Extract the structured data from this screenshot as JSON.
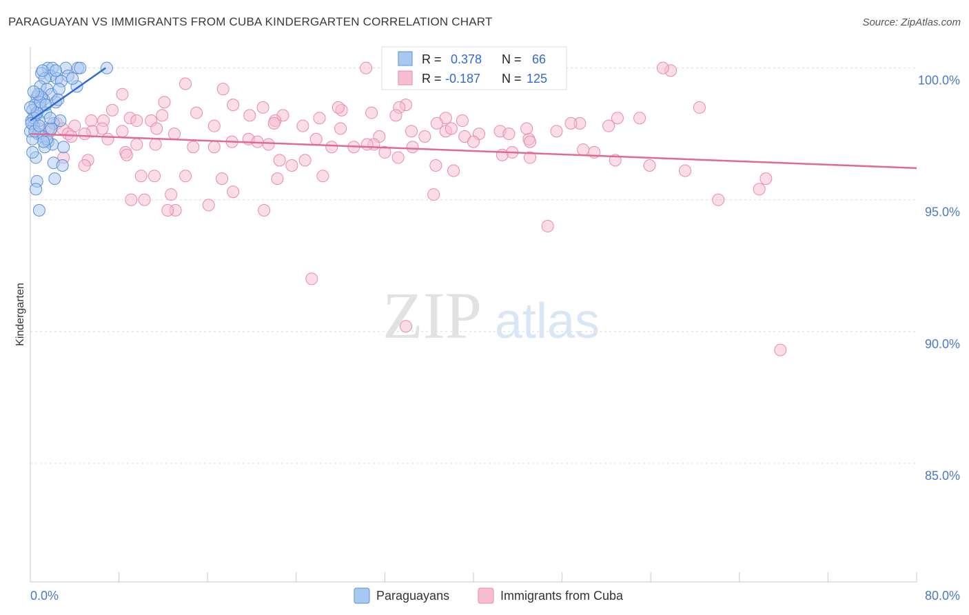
{
  "header": {
    "title": "PARAGUAYAN VS IMMIGRANTS FROM CUBA KINDERGARTEN CORRELATION CHART",
    "source": "Source: ZipAtlas.com"
  },
  "watermark": {
    "zip": "ZIP",
    "atlas": "atlas"
  },
  "colors": {
    "blue_fill": "#a9c8f0",
    "blue_stroke": "#5b8ed8",
    "blue_line": "#2f6bd6",
    "pink_fill": "#f7bcd0",
    "pink_stroke": "#e98aab",
    "pink_line": "#e06a95",
    "grid": "#d8d8d8",
    "tick_text": "#4a78c8"
  },
  "chart_data": {
    "type": "scatter",
    "title": "PARAGUAYAN VS IMMIGRANTS FROM CUBA KINDERGARTEN CORRELATION CHART",
    "xlabel": "",
    "ylabel": "Kindergarten",
    "xlim": [
      0,
      80
    ],
    "ylim": [
      80.5,
      100.8
    ],
    "x_tick_labels": [
      "0.0%",
      "80.0%"
    ],
    "y_ticks": [
      {
        "value": 100,
        "label": "100.0%"
      },
      {
        "value": 95,
        "label": "95.0%"
      },
      {
        "value": 90,
        "label": "90.0%"
      },
      {
        "value": 85,
        "label": "85.0%"
      }
    ],
    "grid": true,
    "legend_position": "bottom-center",
    "stats": [
      {
        "series": "Paraguayans",
        "r_label": "R =",
        "r": "0.378",
        "n_label": "N =",
        "n": "66"
      },
      {
        "series": "Immigrants from Cuba",
        "r_label": "R =",
        "r": "-0.187",
        "n_label": "N =",
        "n": "125"
      }
    ],
    "series": [
      {
        "name": "Paraguayans",
        "color": "blue",
        "trend": {
          "x": [
            0.0,
            6.8
          ],
          "y": [
            98.0,
            100.0
          ]
        },
        "points": [
          [
            1.6,
            100.0
          ],
          [
            2.0,
            100.0
          ],
          [
            3.2,
            100.0
          ],
          [
            4.3,
            100.0
          ],
          [
            4.5,
            100.0
          ],
          [
            6.9,
            100.0
          ],
          [
            1.0,
            99.8
          ],
          [
            1.8,
            99.7
          ],
          [
            2.4,
            99.6
          ],
          [
            3.4,
            99.7
          ],
          [
            1.3,
            99.6
          ],
          [
            2.8,
            99.5
          ],
          [
            0.9,
            99.3
          ],
          [
            1.5,
            99.2
          ],
          [
            4.2,
            99.3
          ],
          [
            1.9,
            99.0
          ],
          [
            0.6,
            98.9
          ],
          [
            1.2,
            98.8
          ],
          [
            2.3,
            98.7
          ],
          [
            0.4,
            98.6
          ],
          [
            0.9,
            98.5
          ],
          [
            0.2,
            98.4
          ],
          [
            1.4,
            98.3
          ],
          [
            0.5,
            98.2
          ],
          [
            0.1,
            98.0
          ],
          [
            0.8,
            98.0
          ],
          [
            2.1,
            97.9
          ],
          [
            0.3,
            97.8
          ],
          [
            1.7,
            97.7
          ],
          [
            0.0,
            97.6
          ],
          [
            0.7,
            97.5
          ],
          [
            1.1,
            97.4
          ],
          [
            0.2,
            97.3
          ],
          [
            1.6,
            97.2
          ],
          [
            2.0,
            97.1
          ],
          [
            1.3,
            97.0
          ],
          [
            0.5,
            96.6
          ],
          [
            2.1,
            96.4
          ],
          [
            2.9,
            96.3
          ],
          [
            0.6,
            95.7
          ],
          [
            2.2,
            95.8
          ],
          [
            0.5,
            95.4
          ],
          [
            0.8,
            94.6
          ],
          [
            0.3,
            98.1
          ],
          [
            1.0,
            98.9
          ],
          [
            2.6,
            99.2
          ],
          [
            0.1,
            97.9
          ],
          [
            1.9,
            97.7
          ],
          [
            0.4,
            97.6
          ],
          [
            2.5,
            98.8
          ],
          [
            3.8,
            99.6
          ],
          [
            1.1,
            99.9
          ],
          [
            0.6,
            98.3
          ],
          [
            1.5,
            97.3
          ],
          [
            0.2,
            96.8
          ],
          [
            0.9,
            98.7
          ],
          [
            1.8,
            98.1
          ],
          [
            2.7,
            98.0
          ],
          [
            0.0,
            98.5
          ],
          [
            1.2,
            97.2
          ],
          [
            0.7,
            99.0
          ],
          [
            3.0,
            97.0
          ],
          [
            2.3,
            99.9
          ],
          [
            0.3,
            99.1
          ],
          [
            1.4,
            98.6
          ],
          [
            0.8,
            97.8
          ]
        ]
      },
      {
        "name": "Immigrants from Cuba",
        "color": "pink",
        "trend": {
          "x": [
            0.0,
            80.0
          ],
          "y": [
            97.5,
            96.2
          ]
        },
        "points": [
          [
            30.3,
            100.0
          ],
          [
            57.8,
            99.9
          ],
          [
            57.1,
            100.0
          ],
          [
            14.0,
            99.4
          ],
          [
            35.5,
            99.6
          ],
          [
            17.4,
            99.2
          ],
          [
            8.3,
            99.0
          ],
          [
            33.9,
            98.6
          ],
          [
            12.1,
            98.7
          ],
          [
            60.4,
            98.5
          ],
          [
            7.4,
            98.4
          ],
          [
            15.0,
            98.3
          ],
          [
            33.3,
            98.5
          ],
          [
            21.0,
            98.5
          ],
          [
            28.1,
            98.4
          ],
          [
            18.3,
            98.6
          ],
          [
            27.8,
            98.5
          ],
          [
            30.8,
            98.3
          ],
          [
            19.8,
            98.2
          ],
          [
            22.8,
            98.2
          ],
          [
            9.0,
            98.1
          ],
          [
            11.9,
            98.2
          ],
          [
            26.1,
            98.1
          ],
          [
            37.5,
            98.1
          ],
          [
            55.0,
            98.1
          ],
          [
            53.0,
            98.1
          ],
          [
            9.6,
            98.0
          ],
          [
            22.1,
            98.0
          ],
          [
            33.0,
            98.2
          ],
          [
            39.0,
            98.0
          ],
          [
            5.5,
            98.0
          ],
          [
            6.6,
            98.0
          ],
          [
            10.9,
            98.0
          ],
          [
            2.4,
            97.9
          ],
          [
            4.0,
            97.8
          ],
          [
            36.7,
            97.9
          ],
          [
            49.6,
            97.9
          ],
          [
            48.8,
            97.9
          ],
          [
            52.2,
            97.8
          ],
          [
            22.0,
            97.9
          ],
          [
            0.8,
            97.7
          ],
          [
            1.8,
            97.6
          ],
          [
            2.9,
            97.7
          ],
          [
            5.6,
            97.6
          ],
          [
            6.5,
            97.7
          ],
          [
            8.3,
            97.6
          ],
          [
            4.9,
            97.5
          ],
          [
            3.4,
            97.5
          ],
          [
            37.5,
            97.6
          ],
          [
            38.0,
            97.7
          ],
          [
            42.4,
            97.6
          ],
          [
            47.5,
            97.6
          ],
          [
            34.4,
            97.6
          ],
          [
            35.6,
            97.4
          ],
          [
            40.5,
            97.5
          ],
          [
            43.2,
            97.5
          ],
          [
            45.0,
            97.3
          ],
          [
            45.1,
            97.2
          ],
          [
            39.2,
            97.4
          ],
          [
            31.5,
            97.4
          ],
          [
            25.8,
            97.3
          ],
          [
            18.2,
            97.2
          ],
          [
            19.7,
            97.3
          ],
          [
            20.5,
            97.2
          ],
          [
            31.0,
            97.1
          ],
          [
            34.5,
            97.0
          ],
          [
            29.2,
            97.0
          ],
          [
            40.0,
            97.2
          ],
          [
            14.7,
            97.0
          ],
          [
            9.6,
            97.1
          ],
          [
            11.3,
            97.1
          ],
          [
            16.6,
            97.0
          ],
          [
            21.5,
            97.1
          ],
          [
            27.2,
            97.0
          ],
          [
            43.5,
            96.8
          ],
          [
            42.6,
            96.7
          ],
          [
            32.0,
            96.8
          ],
          [
            45.1,
            96.6
          ],
          [
            50.9,
            96.8
          ],
          [
            55.9,
            96.3
          ],
          [
            59.1,
            96.1
          ],
          [
            22.5,
            96.5
          ],
          [
            24.8,
            96.5
          ],
          [
            33.2,
            96.6
          ],
          [
            8.6,
            96.8
          ],
          [
            8.7,
            96.7
          ],
          [
            3.0,
            96.6
          ],
          [
            5.2,
            96.5
          ],
          [
            4.9,
            96.3
          ],
          [
            23.6,
            96.3
          ],
          [
            36.6,
            96.3
          ],
          [
            38.2,
            96.1
          ],
          [
            14.0,
            95.9
          ],
          [
            10.0,
            95.9
          ],
          [
            11.2,
            95.9
          ],
          [
            17.3,
            95.8
          ],
          [
            26.4,
            95.9
          ],
          [
            22.3,
            95.8
          ],
          [
            66.4,
            95.8
          ],
          [
            65.8,
            95.4
          ],
          [
            12.7,
            95.2
          ],
          [
            18.3,
            95.3
          ],
          [
            36.4,
            95.2
          ],
          [
            13.1,
            94.6
          ],
          [
            9.1,
            95.0
          ],
          [
            10.3,
            95.0
          ],
          [
            62.1,
            95.0
          ],
          [
            16.1,
            94.8
          ],
          [
            12.4,
            94.6
          ],
          [
            21.1,
            94.6
          ],
          [
            46.7,
            94.0
          ],
          [
            25.4,
            92.0
          ],
          [
            33.9,
            90.2
          ],
          [
            67.7,
            89.3
          ],
          [
            3.7,
            97.4
          ],
          [
            7.0,
            97.3
          ],
          [
            11.4,
            97.7
          ],
          [
            13.0,
            97.5
          ],
          [
            16.6,
            97.8
          ],
          [
            24.6,
            97.8
          ],
          [
            28.0,
            97.7
          ],
          [
            30.4,
            97.1
          ],
          [
            44.8,
            97.7
          ],
          [
            49.9,
            96.9
          ],
          [
            52.8,
            96.5
          ]
        ]
      }
    ]
  },
  "legend": {
    "items": [
      {
        "label": "Paraguayans"
      },
      {
        "label": "Immigrants from Cuba"
      }
    ]
  }
}
